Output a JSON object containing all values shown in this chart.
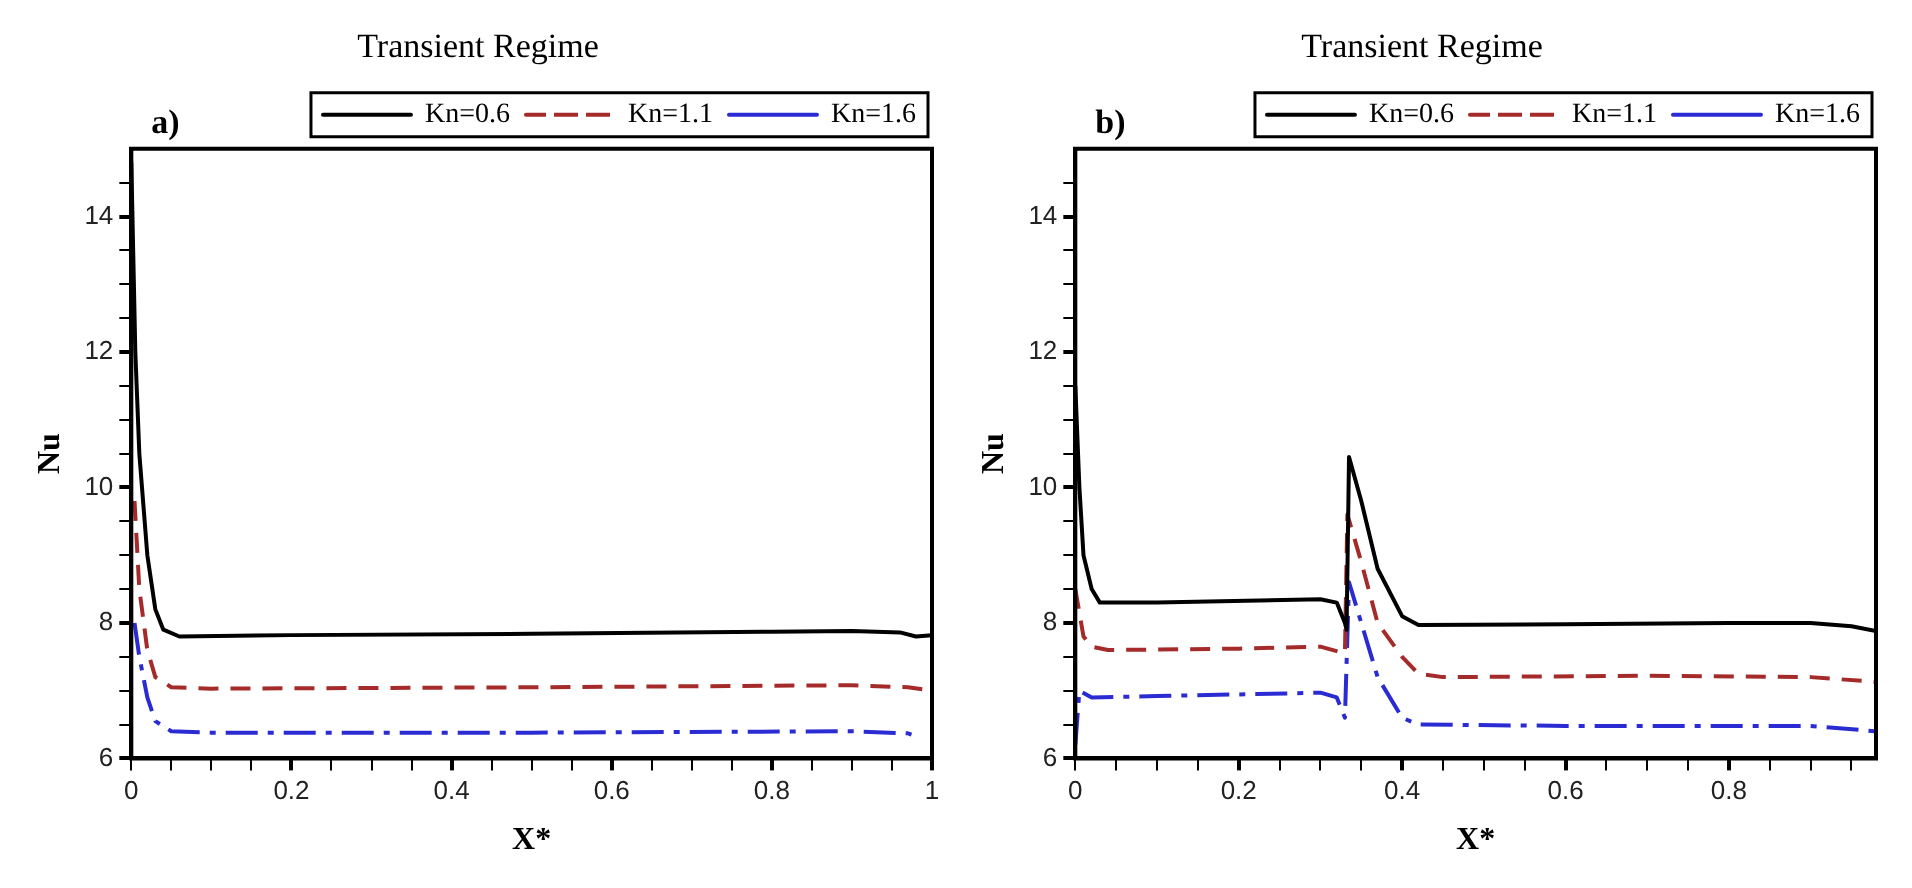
{
  "chart_data": [
    {
      "type": "line",
      "title": "Transient Regime",
      "annotations": [
        "a)"
      ],
      "xlabel": "X*",
      "ylabel": "Nu",
      "xlim": [
        0,
        1
      ],
      "ylim": [
        6,
        15
      ],
      "xticks": [
        0,
        {
          "value": 0.05,
          "label": null
        },
        {
          "value": 0.1,
          "label": null
        },
        {
          "value": 0.15,
          "label": null
        },
        0.2,
        {
          "value": 0.25,
          "label": null
        },
        {
          "value": 0.3,
          "label": null
        },
        {
          "value": 0.35,
          "label": null
        },
        0.4,
        {
          "value": 0.45,
          "label": null
        },
        {
          "value": 0.5,
          "label": null
        },
        {
          "value": 0.55,
          "label": null
        },
        0.6,
        {
          "value": 0.65,
          "label": null
        },
        {
          "value": 0.7,
          "label": null
        },
        {
          "value": 0.75,
          "label": null
        },
        0.8,
        {
          "value": 0.85,
          "label": null
        },
        {
          "value": 0.9,
          "label": null
        },
        {
          "value": 0.95,
          "label": null
        },
        1
      ],
      "yticks": [
        6,
        {
          "value": 6.5,
          "label": null
        },
        {
          "value": 7,
          "label": null
        },
        {
          "value": 7.5,
          "label": null
        },
        8,
        {
          "value": 8.5,
          "label": null
        },
        {
          "value": 9,
          "label": null
        },
        {
          "value": 9.5,
          "label": null
        },
        10,
        {
          "value": 10.5,
          "label": null
        },
        {
          "value": 11,
          "label": null
        },
        {
          "value": 11.5,
          "label": null
        },
        12,
        {
          "value": 12.5,
          "label": null
        },
        {
          "value": 13,
          "label": null
        },
        {
          "value": 13.5,
          "label": null
        },
        14,
        {
          "value": 14.5,
          "label": null
        }
      ],
      "grid": false,
      "legend": "top right",
      "marker": "none",
      "series": [
        {
          "name": "Kn=0.6",
          "color": "#000000",
          "line_style": "solid",
          "x": [
            0,
            0.005,
            0.01,
            0.02,
            0.03,
            0.04,
            0.06,
            0.2,
            0.5,
            0.8,
            0.9,
            0.96,
            0.98,
            1
          ],
          "values": [
            14.8,
            12,
            10.5,
            9,
            8.2,
            7.9,
            7.8,
            7.82,
            7.84,
            7.87,
            7.88,
            7.86,
            7.8,
            7.82
          ]
        },
        {
          "name": "Kn=1.1",
          "color": "#a52a2a",
          "line_style": "dashed",
          "x": [
            0.004,
            0.01,
            0.02,
            0.03,
            0.05,
            0.1,
            0.5,
            0.9,
            0.97,
            1
          ],
          "values": [
            9.8,
            8.5,
            7.6,
            7.2,
            7.05,
            7.03,
            7.05,
            7.08,
            7.05,
            7.0
          ]
        },
        {
          "name": "Kn=1.6",
          "color": "#2b2bd4",
          "line_style": "dashdot",
          "x": [
            0.004,
            0.01,
            0.02,
            0.03,
            0.05,
            0.1,
            0.5,
            0.9,
            0.97,
            0.98
          ],
          "values": [
            8.0,
            7.5,
            6.9,
            6.55,
            6.4,
            6.38,
            6.38,
            6.4,
            6.37,
            6.33
          ]
        }
      ]
    },
    {
      "type": "line",
      "title": "Transient Regime",
      "annotations": [
        "b)"
      ],
      "xlabel": "X*",
      "ylabel": "Nu",
      "xlim": [
        0,
        0.98
      ],
      "ylim": [
        6,
        15
      ],
      "xticks": [
        0,
        {
          "value": 0.05,
          "label": null
        },
        {
          "value": 0.1,
          "label": null
        },
        {
          "value": 0.15,
          "label": null
        },
        0.2,
        {
          "value": 0.25,
          "label": null
        },
        {
          "value": 0.3,
          "label": null
        },
        {
          "value": 0.35,
          "label": null
        },
        0.4,
        {
          "value": 0.45,
          "label": null
        },
        {
          "value": 0.5,
          "label": null
        },
        {
          "value": 0.55,
          "label": null
        },
        0.6,
        {
          "value": 0.65,
          "label": null
        },
        {
          "value": 0.7,
          "label": null
        },
        {
          "value": 0.75,
          "label": null
        },
        0.8,
        {
          "value": 0.85,
          "label": null
        },
        {
          "value": 0.9,
          "label": null
        },
        {
          "value": 0.95,
          "label": null
        }
      ],
      "yticks": [
        6,
        {
          "value": 6.5,
          "label": null
        },
        {
          "value": 7,
          "label": null
        },
        {
          "value": 7.5,
          "label": null
        },
        8,
        {
          "value": 8.5,
          "label": null
        },
        {
          "value": 9,
          "label": null
        },
        {
          "value": 9.5,
          "label": null
        },
        10,
        {
          "value": 10.5,
          "label": null
        },
        {
          "value": 11,
          "label": null
        },
        {
          "value": 11.5,
          "label": null
        },
        12,
        {
          "value": 12.5,
          "label": null
        },
        {
          "value": 13,
          "label": null
        },
        {
          "value": 13.5,
          "label": null
        },
        14,
        {
          "value": 14.5,
          "label": null
        }
      ],
      "grid": false,
      "legend": "top right",
      "marker": "none",
      "series": [
        {
          "name": "Kn=0.6",
          "color": "#000000",
          "line_style": "solid",
          "x": [
            0,
            0.005,
            0.01,
            0.02,
            0.03,
            0.1,
            0.3,
            0.32,
            0.33,
            0.332,
            0.335,
            0.35,
            0.37,
            0.4,
            0.42,
            0.6,
            0.8,
            0.9,
            0.95,
            0.98
          ],
          "values": [
            11.5,
            10,
            9,
            8.5,
            8.3,
            8.3,
            8.35,
            8.3,
            8.0,
            7.9,
            10.45,
            9.8,
            8.8,
            8.1,
            7.97,
            7.98,
            8.0,
            8.0,
            7.95,
            7.88
          ]
        },
        {
          "name": "Kn=1.1",
          "color": "#a52a2a",
          "line_style": "dashed",
          "x": [
            0,
            0.01,
            0.02,
            0.04,
            0.2,
            0.3,
            0.33,
            0.333,
            0.35,
            0.37,
            0.4,
            0.42,
            0.45,
            0.7,
            0.9,
            0.98
          ],
          "values": [
            8.5,
            7.8,
            7.65,
            7.6,
            7.62,
            7.65,
            7.55,
            9.6,
            8.9,
            8.0,
            7.5,
            7.25,
            7.2,
            7.22,
            7.2,
            7.13
          ]
        },
        {
          "name": "Kn=1.6",
          "color": "#2b2bd4",
          "line_style": "dashdot",
          "x": [
            0,
            0.005,
            0.02,
            0.1,
            0.3,
            0.32,
            0.33,
            0.335,
            0.35,
            0.37,
            0.4,
            0.42,
            0.6,
            0.9,
            0.98
          ],
          "values": [
            6.2,
            7.0,
            6.9,
            6.92,
            6.97,
            6.9,
            6.6,
            8.6,
            8.0,
            7.2,
            6.6,
            6.5,
            6.48,
            6.48,
            6.4
          ]
        }
      ]
    }
  ]
}
